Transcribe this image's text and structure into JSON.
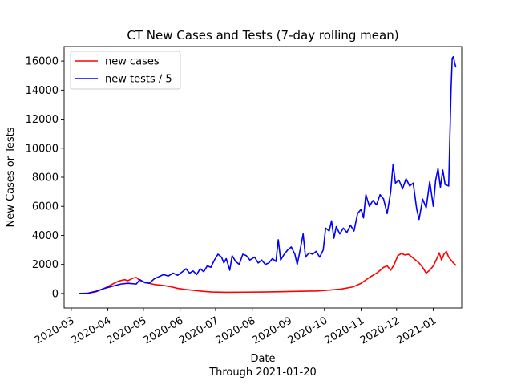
{
  "chart_data": {
    "type": "line",
    "title": "CT New Cases and Tests (7-day rolling mean)",
    "xlabel": "Date",
    "xlabel_sub": "Through 2021-01-20",
    "ylabel": "New Cases or Tests",
    "ylim": [
      -1000,
      17000
    ],
    "yticks": [
      0,
      2000,
      4000,
      6000,
      8000,
      10000,
      12000,
      14000,
      16000
    ],
    "ytick_labels": [
      "0",
      "2000",
      "4000",
      "6000",
      "8000",
      "10000",
      "12000",
      "14000",
      "16000"
    ],
    "xlim": [
      "2020-02-24",
      "2021-01-25"
    ],
    "xticks": [
      "2020-03-01",
      "2020-04-01",
      "2020-05-01",
      "2020-06-01",
      "2020-07-01",
      "2020-08-01",
      "2020-09-01",
      "2020-10-01",
      "2020-11-01",
      "2020-12-01",
      "2021-01-01"
    ],
    "xtick_labels": [
      "2020-03",
      "2020-04",
      "2020-05",
      "2020-06",
      "2020-07",
      "2020-08",
      "2020-09",
      "2020-10",
      "2020-11",
      "2020-12",
      "2021-01"
    ],
    "grid": false,
    "legend": "upper-left",
    "series": [
      {
        "name": "new cases",
        "color": "#ff0000",
        "points": [
          [
            "2020-03-08",
            0
          ],
          [
            "2020-03-15",
            10
          ],
          [
            "2020-03-22",
            120
          ],
          [
            "2020-03-29",
            350
          ],
          [
            "2020-04-05",
            650
          ],
          [
            "2020-04-10",
            850
          ],
          [
            "2020-04-15",
            950
          ],
          [
            "2020-04-18",
            880
          ],
          [
            "2020-04-22",
            1050
          ],
          [
            "2020-04-25",
            1100
          ],
          [
            "2020-04-28",
            900
          ],
          [
            "2020-05-02",
            780
          ],
          [
            "2020-05-06",
            700
          ],
          [
            "2020-05-10",
            620
          ],
          [
            "2020-05-15",
            580
          ],
          [
            "2020-05-20",
            520
          ],
          [
            "2020-05-25",
            450
          ],
          [
            "2020-05-30",
            350
          ],
          [
            "2020-06-05",
            280
          ],
          [
            "2020-06-12",
            220
          ],
          [
            "2020-06-20",
            150
          ],
          [
            "2020-06-28",
            100
          ],
          [
            "2020-07-10",
            80
          ],
          [
            "2020-07-25",
            90
          ],
          [
            "2020-08-10",
            100
          ],
          [
            "2020-08-25",
            120
          ],
          [
            "2020-09-10",
            150
          ],
          [
            "2020-09-25",
            170
          ],
          [
            "2020-10-05",
            230
          ],
          [
            "2020-10-15",
            300
          ],
          [
            "2020-10-25",
            450
          ],
          [
            "2020-11-01",
            700
          ],
          [
            "2020-11-08",
            1100
          ],
          [
            "2020-11-15",
            1450
          ],
          [
            "2020-11-20",
            1800
          ],
          [
            "2020-11-23",
            1900
          ],
          [
            "2020-11-26",
            1600
          ],
          [
            "2020-11-29",
            2000
          ],
          [
            "2020-12-02",
            2600
          ],
          [
            "2020-12-05",
            2750
          ],
          [
            "2020-12-08",
            2650
          ],
          [
            "2020-12-11",
            2700
          ],
          [
            "2020-12-14",
            2500
          ],
          [
            "2020-12-17",
            2300
          ],
          [
            "2020-12-20",
            2100
          ],
          [
            "2020-12-23",
            1800
          ],
          [
            "2020-12-26",
            1400
          ],
          [
            "2020-12-29",
            1600
          ],
          [
            "2021-01-01",
            1900
          ],
          [
            "2021-01-04",
            2400
          ],
          [
            "2021-01-06",
            2800
          ],
          [
            "2021-01-08",
            2300
          ],
          [
            "2021-01-10",
            2700
          ],
          [
            "2021-01-12",
            2900
          ],
          [
            "2021-01-14",
            2500
          ],
          [
            "2021-01-16",
            2300
          ],
          [
            "2021-01-18",
            2100
          ],
          [
            "2021-01-20",
            1950
          ]
        ]
      },
      {
        "name": "new tests / 5",
        "color": "#0000ff",
        "points": [
          [
            "2020-03-08",
            0
          ],
          [
            "2020-03-15",
            20
          ],
          [
            "2020-03-22",
            150
          ],
          [
            "2020-03-29",
            350
          ],
          [
            "2020-04-05",
            500
          ],
          [
            "2020-04-12",
            650
          ],
          [
            "2020-04-18",
            700
          ],
          [
            "2020-04-25",
            650
          ],
          [
            "2020-04-28",
            950
          ],
          [
            "2020-05-02",
            750
          ],
          [
            "2020-05-06",
            700
          ],
          [
            "2020-05-10",
            1000
          ],
          [
            "2020-05-14",
            1150
          ],
          [
            "2020-05-18",
            1300
          ],
          [
            "2020-05-22",
            1200
          ],
          [
            "2020-05-26",
            1400
          ],
          [
            "2020-05-30",
            1250
          ],
          [
            "2020-06-03",
            1500
          ],
          [
            "2020-06-06",
            1700
          ],
          [
            "2020-06-09",
            1400
          ],
          [
            "2020-06-12",
            1550
          ],
          [
            "2020-06-15",
            1300
          ],
          [
            "2020-06-18",
            1700
          ],
          [
            "2020-06-21",
            1500
          ],
          [
            "2020-06-24",
            1900
          ],
          [
            "2020-06-27",
            1800
          ],
          [
            "2020-06-30",
            2300
          ],
          [
            "2020-07-03",
            2700
          ],
          [
            "2020-07-06",
            2500
          ],
          [
            "2020-07-08",
            2100
          ],
          [
            "2020-07-10",
            2400
          ],
          [
            "2020-07-13",
            1600
          ],
          [
            "2020-07-15",
            2600
          ],
          [
            "2020-07-18",
            2200
          ],
          [
            "2020-07-21",
            2000
          ],
          [
            "2020-07-24",
            2700
          ],
          [
            "2020-07-27",
            2600
          ],
          [
            "2020-07-30",
            2300
          ],
          [
            "2020-08-03",
            2500
          ],
          [
            "2020-08-06",
            2100
          ],
          [
            "2020-08-09",
            2300
          ],
          [
            "2020-08-12",
            2000
          ],
          [
            "2020-08-15",
            2100
          ],
          [
            "2020-08-18",
            2400
          ],
          [
            "2020-08-21",
            2200
          ],
          [
            "2020-08-23",
            3700
          ],
          [
            "2020-08-25",
            2300
          ],
          [
            "2020-08-28",
            2700
          ],
          [
            "2020-08-31",
            3000
          ],
          [
            "2020-09-03",
            3200
          ],
          [
            "2020-09-06",
            2700
          ],
          [
            "2020-09-08",
            2000
          ],
          [
            "2020-09-10",
            2800
          ],
          [
            "2020-09-13",
            4100
          ],
          [
            "2020-09-15",
            2500
          ],
          [
            "2020-09-18",
            2800
          ],
          [
            "2020-09-21",
            2700
          ],
          [
            "2020-09-24",
            2900
          ],
          [
            "2020-09-27",
            2500
          ],
          [
            "2020-09-30",
            3000
          ],
          [
            "2020-10-02",
            4500
          ],
          [
            "2020-10-05",
            4300
          ],
          [
            "2020-10-07",
            5000
          ],
          [
            "2020-10-09",
            3800
          ],
          [
            "2020-10-11",
            4600
          ],
          [
            "2020-10-14",
            4100
          ],
          [
            "2020-10-17",
            4500
          ],
          [
            "2020-10-20",
            4200
          ],
          [
            "2020-10-23",
            4700
          ],
          [
            "2020-10-26",
            4300
          ],
          [
            "2020-10-29",
            5500
          ],
          [
            "2020-11-01",
            5800
          ],
          [
            "2020-11-03",
            5200
          ],
          [
            "2020-11-05",
            6800
          ],
          [
            "2020-11-08",
            6000
          ],
          [
            "2020-11-11",
            6400
          ],
          [
            "2020-11-14",
            6100
          ],
          [
            "2020-11-17",
            6800
          ],
          [
            "2020-11-20",
            6500
          ],
          [
            "2020-11-23",
            5500
          ],
          [
            "2020-11-26",
            7000
          ],
          [
            "2020-11-28",
            8900
          ],
          [
            "2020-11-30",
            7600
          ],
          [
            "2020-12-03",
            7800
          ],
          [
            "2020-12-06",
            7200
          ],
          [
            "2020-12-09",
            7900
          ],
          [
            "2020-12-12",
            7400
          ],
          [
            "2020-12-15",
            7600
          ],
          [
            "2020-12-18",
            5800
          ],
          [
            "2020-12-20",
            5100
          ],
          [
            "2020-12-23",
            6500
          ],
          [
            "2020-12-26",
            5900
          ],
          [
            "2020-12-29",
            7700
          ],
          [
            "2021-01-01",
            6000
          ],
          [
            "2021-01-03",
            7800
          ],
          [
            "2021-01-05",
            8600
          ],
          [
            "2021-01-07",
            7300
          ],
          [
            "2021-01-09",
            8500
          ],
          [
            "2021-01-11",
            7500
          ],
          [
            "2021-01-14",
            7400
          ],
          [
            "2021-01-16",
            14000
          ],
          [
            "2021-01-17",
            16200
          ],
          [
            "2021-01-18",
            16300
          ],
          [
            "2021-01-19",
            15900
          ],
          [
            "2021-01-20",
            15600
          ]
        ]
      }
    ]
  }
}
